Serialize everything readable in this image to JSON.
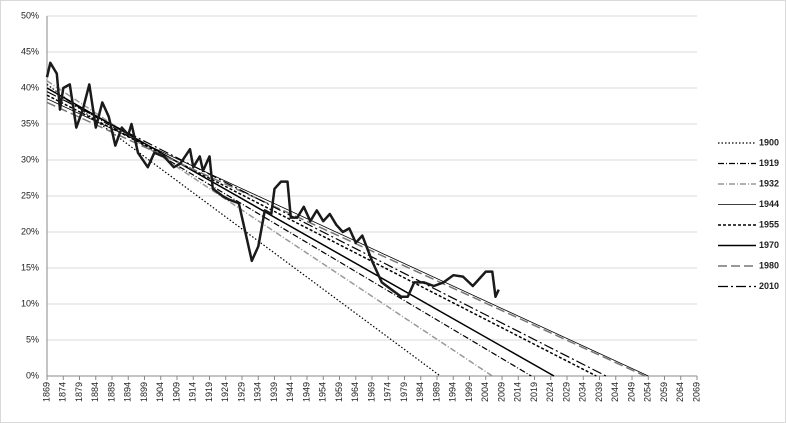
{
  "chart_data": {
    "type": "line",
    "xlim": [
      1869,
      2069
    ],
    "xticks": [
      1869,
      1874,
      1879,
      1884,
      1889,
      1894,
      1899,
      1904,
      1909,
      1914,
      1919,
      1924,
      1929,
      1934,
      1939,
      1944,
      1949,
      1954,
      1959,
      1964,
      1969,
      1974,
      1979,
      1984,
      1989,
      1994,
      1999,
      2004,
      2009,
      2014,
      2019,
      2024,
      2029,
      2034,
      2039,
      2044,
      2049,
      2054,
      2059,
      2064,
      2069
    ],
    "ylim": [
      0,
      50
    ],
    "yticks": [
      {
        "value": 0,
        "label": "0%"
      },
      {
        "value": 5,
        "label": "5%"
      },
      {
        "value": 10,
        "label": "10%"
      },
      {
        "value": 15,
        "label": "15%"
      },
      {
        "value": 20,
        "label": "20%"
      },
      {
        "value": 25,
        "label": "25%"
      },
      {
        "value": 30,
        "label": "30%"
      },
      {
        "value": 35,
        "label": "35%"
      },
      {
        "value": 40,
        "label": "40%"
      },
      {
        "value": 45,
        "label": "45%"
      },
      {
        "value": 50,
        "label": "50%"
      }
    ],
    "grid": true,
    "legend": "right",
    "series": [
      {
        "name": "1900",
        "color": "#000000",
        "dash": "1.5,2",
        "width": 1.2,
        "x": [
          1869,
          1990
        ],
        "values": [
          40.5,
          0
        ]
      },
      {
        "name": "1919",
        "color": "#000000",
        "dash": "6,2,1,2",
        "width": 1.2,
        "x": [
          1869,
          2018
        ],
        "values": [
          40,
          0
        ]
      },
      {
        "name": "1932",
        "color": "#999999",
        "dash": "6,2,1,2",
        "width": 1.5,
        "x": [
          1869,
          2006
        ],
        "values": [
          41,
          0
        ]
      },
      {
        "name": "1944",
        "color": "#000000",
        "dash": "none",
        "width": 0.8,
        "x": [
          1869,
          2054
        ],
        "values": [
          38.5,
          0
        ]
      },
      {
        "name": "1955",
        "color": "#000000",
        "dash": "3,2",
        "width": 1.5,
        "x": [
          1869,
          2038
        ],
        "values": [
          39,
          0
        ]
      },
      {
        "name": "1970",
        "color": "#000000",
        "dash": "none",
        "width": 1.5,
        "x": [
          1869,
          2025
        ],
        "values": [
          40,
          0
        ]
      },
      {
        "name": "1980",
        "color": "#777777",
        "dash": "9,4",
        "width": 1.5,
        "x": [
          1869,
          2053
        ],
        "values": [
          38,
          0
        ]
      },
      {
        "name": "2010",
        "color": "#000000",
        "dash": "10,3,2,3",
        "width": 1.2,
        "x": [
          1869,
          2041
        ],
        "values": [
          39.5,
          0
        ]
      },
      {
        "color": "#1a1a1a",
        "dash": "none",
        "width": 2.5,
        "x": [
          1869,
          1870,
          1872,
          1873,
          1874,
          1876,
          1878,
          1880,
          1882,
          1884,
          1886,
          1888,
          1890,
          1892,
          1894,
          1895,
          1897,
          1900,
          1902,
          1905,
          1908,
          1910,
          1913,
          1914,
          1916,
          1917,
          1919,
          1920,
          1923,
          1925,
          1928,
          1930,
          1932,
          1934,
          1936,
          1938,
          1939,
          1941,
          1943,
          1944,
          1946,
          1948,
          1950,
          1952,
          1954,
          1956,
          1958,
          1960,
          1962,
          1964,
          1966,
          1969,
          1972,
          1975,
          1978,
          1980,
          1982,
          1985,
          1988,
          1991,
          1994,
          1997,
          2000,
          2004,
          2006,
          2007,
          2008
        ],
        "values": [
          41.5,
          43.5,
          42,
          37,
          40,
          40.5,
          34.5,
          37,
          40.5,
          34.5,
          38,
          36,
          32,
          34.5,
          33.5,
          35,
          31,
          29,
          31,
          30.5,
          29,
          29.5,
          31.5,
          29,
          30.5,
          28.5,
          30.5,
          26,
          25,
          24.5,
          24,
          20,
          16,
          18,
          23,
          22.5,
          26,
          27,
          27,
          22,
          22,
          23.5,
          21.5,
          23,
          21.5,
          22.5,
          21,
          20,
          20.5,
          18.5,
          19.5,
          16,
          13,
          12,
          11,
          11,
          13,
          13,
          12.5,
          13,
          14,
          13.8,
          12.5,
          14.5,
          14.5,
          11,
          12
        ]
      }
    ]
  }
}
